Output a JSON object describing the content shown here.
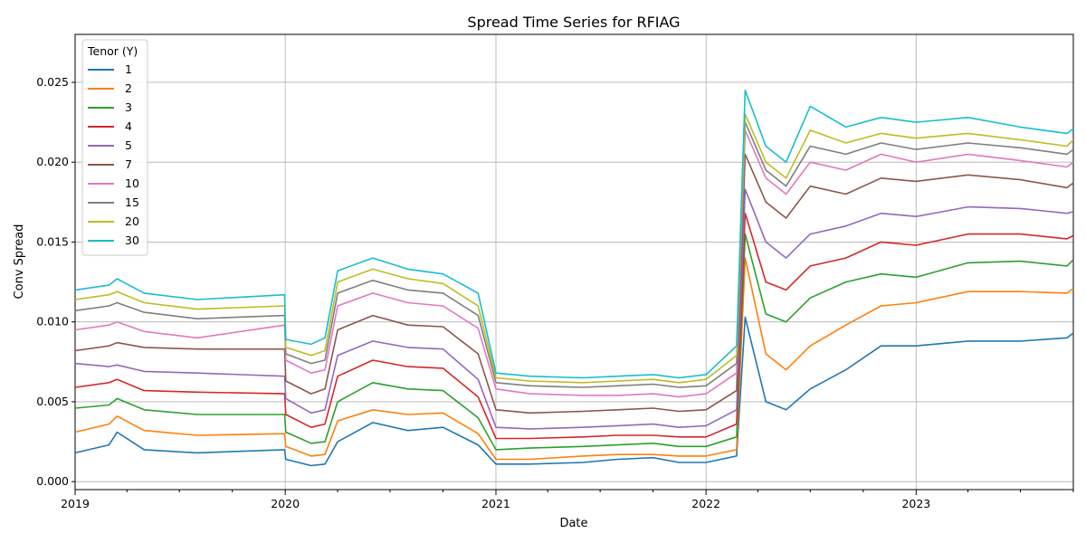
{
  "chart_data": {
    "type": "line",
    "title": "Spread Time Series for RFIAG",
    "xlabel": "Date",
    "ylabel": "Conv Spread",
    "xlim": [
      "2019-01-01",
      "2023-10-01"
    ],
    "ylim": [
      -0.0005,
      0.028
    ],
    "x_ticks": [
      "2019",
      "2020",
      "2021",
      "2022",
      "2023"
    ],
    "y_ticks": [
      "0.000",
      "0.005",
      "0.010",
      "0.015",
      "0.020",
      "0.025"
    ],
    "grid": true,
    "legend": {
      "title": "Tenor (Y)",
      "position": "upper-left"
    },
    "series": [
      {
        "name": "1",
        "color": "#1f77b4",
        "x": [
          "2019-01-01",
          "2019-03-01",
          "2019-03-15",
          "2019-05-01",
          "2019-08-01",
          "2019-12-31",
          "2020-01-02",
          "2020-02-15",
          "2020-03-10",
          "2020-04-01",
          "2020-06-01",
          "2020-08-01",
          "2020-10-01",
          "2020-12-01",
          "2021-01-01",
          "2021-03-01",
          "2021-06-01",
          "2021-08-01",
          "2021-10-01",
          "2021-11-15",
          "2022-01-01",
          "2022-02-23",
          "2022-03-10",
          "2022-04-15",
          "2022-05-20",
          "2022-07-01",
          "2022-09-01",
          "2022-11-01",
          "2023-01-01",
          "2023-04-01",
          "2023-07-01",
          "2023-09-20",
          "2023-10-01"
        ],
        "y": [
          0.0018,
          0.0023,
          0.0031,
          0.002,
          0.0018,
          0.002,
          0.0014,
          0.001,
          0.0011,
          0.0025,
          0.0037,
          0.0032,
          0.0034,
          0.0023,
          0.0011,
          0.0011,
          0.0012,
          0.0014,
          0.0015,
          0.0012,
          0.0012,
          0.0016,
          0.0103,
          0.005,
          0.0045,
          0.0058,
          0.007,
          0.0085,
          0.0085,
          0.0088,
          0.0088,
          0.009,
          0.0093
        ]
      },
      {
        "name": "2",
        "color": "#ff7f0e",
        "x": [
          "2019-01-01",
          "2019-03-01",
          "2019-03-15",
          "2019-05-01",
          "2019-08-01",
          "2019-12-31",
          "2020-01-02",
          "2020-02-15",
          "2020-03-10",
          "2020-04-01",
          "2020-06-01",
          "2020-08-01",
          "2020-10-01",
          "2020-12-01",
          "2021-01-01",
          "2021-03-01",
          "2021-06-01",
          "2021-08-01",
          "2021-10-01",
          "2021-11-15",
          "2022-01-01",
          "2022-02-23",
          "2022-03-10",
          "2022-04-15",
          "2022-05-20",
          "2022-07-01",
          "2022-09-01",
          "2022-11-01",
          "2023-01-01",
          "2023-04-01",
          "2023-07-01",
          "2023-09-20",
          "2023-10-01"
        ],
        "y": [
          0.0031,
          0.0036,
          0.0041,
          0.0032,
          0.0029,
          0.003,
          0.0022,
          0.0016,
          0.0017,
          0.0038,
          0.0045,
          0.0042,
          0.0043,
          0.003,
          0.0014,
          0.0014,
          0.0016,
          0.0017,
          0.0017,
          0.0016,
          0.0016,
          0.002,
          0.014,
          0.008,
          0.007,
          0.0085,
          0.0098,
          0.011,
          0.0112,
          0.0119,
          0.0119,
          0.0118,
          0.0121
        ]
      },
      {
        "name": "3",
        "color": "#2ca02c",
        "x": [
          "2019-01-01",
          "2019-03-01",
          "2019-03-15",
          "2019-05-01",
          "2019-08-01",
          "2019-12-31",
          "2020-01-02",
          "2020-02-15",
          "2020-03-10",
          "2020-04-01",
          "2020-06-01",
          "2020-08-01",
          "2020-10-01",
          "2020-12-01",
          "2021-01-01",
          "2021-03-01",
          "2021-06-01",
          "2021-08-01",
          "2021-10-01",
          "2021-11-15",
          "2022-01-01",
          "2022-02-23",
          "2022-03-10",
          "2022-04-15",
          "2022-05-20",
          "2022-07-01",
          "2022-09-01",
          "2022-11-01",
          "2023-01-01",
          "2023-04-01",
          "2023-07-01",
          "2023-09-20",
          "2023-10-01"
        ],
        "y": [
          0.0046,
          0.0048,
          0.0052,
          0.0045,
          0.0042,
          0.0042,
          0.0031,
          0.0024,
          0.0025,
          0.005,
          0.0062,
          0.0058,
          0.0057,
          0.004,
          0.002,
          0.0021,
          0.0022,
          0.0023,
          0.0024,
          0.0022,
          0.0022,
          0.0028,
          0.0155,
          0.0105,
          0.01,
          0.0115,
          0.0125,
          0.013,
          0.0128,
          0.0137,
          0.0138,
          0.0135,
          0.0139
        ]
      },
      {
        "name": "4",
        "color": "#d62728",
        "x": [
          "2019-01-01",
          "2019-03-01",
          "2019-03-15",
          "2019-05-01",
          "2019-08-01",
          "2019-12-31",
          "2020-01-02",
          "2020-02-15",
          "2020-03-10",
          "2020-04-01",
          "2020-06-01",
          "2020-08-01",
          "2020-10-01",
          "2020-12-01",
          "2021-01-01",
          "2021-03-01",
          "2021-06-01",
          "2021-08-01",
          "2021-10-01",
          "2021-11-15",
          "2022-01-01",
          "2022-02-23",
          "2022-03-10",
          "2022-04-15",
          "2022-05-20",
          "2022-07-01",
          "2022-09-01",
          "2022-11-01",
          "2023-01-01",
          "2023-04-01",
          "2023-07-01",
          "2023-09-20",
          "2023-10-01"
        ],
        "y": [
          0.0059,
          0.0062,
          0.0064,
          0.0057,
          0.0056,
          0.0055,
          0.0042,
          0.0034,
          0.0036,
          0.0066,
          0.0076,
          0.0072,
          0.0071,
          0.0053,
          0.0027,
          0.0027,
          0.0028,
          0.0029,
          0.0029,
          0.0028,
          0.0028,
          0.0036,
          0.0168,
          0.0125,
          0.012,
          0.0135,
          0.014,
          0.015,
          0.0148,
          0.0155,
          0.0155,
          0.0152,
          0.0154
        ]
      },
      {
        "name": "5",
        "color": "#9467bd",
        "x": [
          "2019-01-01",
          "2019-03-01",
          "2019-03-15",
          "2019-05-01",
          "2019-08-01",
          "2019-12-31",
          "2020-01-02",
          "2020-02-15",
          "2020-03-10",
          "2020-04-01",
          "2020-06-01",
          "2020-08-01",
          "2020-10-01",
          "2020-12-01",
          "2021-01-01",
          "2021-03-01",
          "2021-06-01",
          "2021-08-01",
          "2021-10-01",
          "2021-11-15",
          "2022-01-01",
          "2022-02-23",
          "2022-03-10",
          "2022-04-15",
          "2022-05-20",
          "2022-07-01",
          "2022-09-01",
          "2022-11-01",
          "2023-01-01",
          "2023-04-01",
          "2023-07-01",
          "2023-09-20",
          "2023-10-01"
        ],
        "y": [
          0.0074,
          0.0072,
          0.0073,
          0.0069,
          0.0068,
          0.0066,
          0.0052,
          0.0043,
          0.0045,
          0.0079,
          0.0088,
          0.0084,
          0.0083,
          0.0064,
          0.0034,
          0.0033,
          0.0034,
          0.0035,
          0.0036,
          0.0034,
          0.0035,
          0.0045,
          0.0183,
          0.015,
          0.014,
          0.0155,
          0.016,
          0.0168,
          0.0166,
          0.0172,
          0.0171,
          0.0168,
          0.0169
        ]
      },
      {
        "name": "7",
        "color": "#8c564b",
        "x": [
          "2019-01-01",
          "2019-03-01",
          "2019-03-15",
          "2019-05-01",
          "2019-08-01",
          "2019-12-31",
          "2020-01-02",
          "2020-02-15",
          "2020-03-10",
          "2020-04-01",
          "2020-06-01",
          "2020-08-01",
          "2020-10-01",
          "2020-12-01",
          "2021-01-01",
          "2021-03-01",
          "2021-06-01",
          "2021-08-01",
          "2021-10-01",
          "2021-11-15",
          "2022-01-01",
          "2022-02-23",
          "2022-03-10",
          "2022-04-15",
          "2022-05-20",
          "2022-07-01",
          "2022-09-01",
          "2022-11-01",
          "2023-01-01",
          "2023-04-01",
          "2023-07-01",
          "2023-09-20",
          "2023-10-01"
        ],
        "y": [
          0.0082,
          0.0085,
          0.0087,
          0.0084,
          0.0083,
          0.0083,
          0.0063,
          0.0055,
          0.0058,
          0.0095,
          0.0104,
          0.0098,
          0.0097,
          0.008,
          0.0045,
          0.0043,
          0.0044,
          0.0045,
          0.0046,
          0.0044,
          0.0045,
          0.0057,
          0.0205,
          0.0175,
          0.0165,
          0.0185,
          0.018,
          0.019,
          0.0188,
          0.0192,
          0.0189,
          0.0184,
          0.0187
        ]
      },
      {
        "name": "10",
        "color": "#e377c2",
        "x": [
          "2019-01-01",
          "2019-03-01",
          "2019-03-15",
          "2019-05-01",
          "2019-08-01",
          "2019-12-31",
          "2020-01-02",
          "2020-02-15",
          "2020-03-10",
          "2020-04-01",
          "2020-06-01",
          "2020-08-01",
          "2020-10-01",
          "2020-12-01",
          "2021-01-01",
          "2021-03-01",
          "2021-06-01",
          "2021-08-01",
          "2021-10-01",
          "2021-11-15",
          "2022-01-01",
          "2022-02-23",
          "2022-03-10",
          "2022-04-15",
          "2022-05-20",
          "2022-07-01",
          "2022-09-01",
          "2022-11-01",
          "2023-01-01",
          "2023-04-01",
          "2023-07-01",
          "2023-09-20",
          "2023-10-01"
        ],
        "y": [
          0.0095,
          0.0098,
          0.01,
          0.0094,
          0.009,
          0.0098,
          0.0076,
          0.0068,
          0.007,
          0.011,
          0.0118,
          0.0112,
          0.011,
          0.0096,
          0.0058,
          0.0055,
          0.0054,
          0.0054,
          0.0055,
          0.0053,
          0.0055,
          0.0068,
          0.022,
          0.019,
          0.018,
          0.02,
          0.0195,
          0.0205,
          0.02,
          0.0205,
          0.0201,
          0.0197,
          0.02
        ]
      },
      {
        "name": "15",
        "color": "#7f7f7f",
        "x": [
          "2019-01-01",
          "2019-03-01",
          "2019-03-15",
          "2019-05-01",
          "2019-08-01",
          "2019-12-31",
          "2020-01-02",
          "2020-02-15",
          "2020-03-10",
          "2020-04-01",
          "2020-06-01",
          "2020-08-01",
          "2020-10-01",
          "2020-12-01",
          "2021-01-01",
          "2021-03-01",
          "2021-06-01",
          "2021-08-01",
          "2021-10-01",
          "2021-11-15",
          "2022-01-01",
          "2022-02-23",
          "2022-03-10",
          "2022-04-15",
          "2022-05-20",
          "2022-07-01",
          "2022-09-01",
          "2022-11-01",
          "2023-01-01",
          "2023-04-01",
          "2023-07-01",
          "2023-09-20",
          "2023-10-01"
        ],
        "y": [
          0.0107,
          0.011,
          0.0112,
          0.0106,
          0.0102,
          0.0104,
          0.008,
          0.0074,
          0.0076,
          0.0118,
          0.0126,
          0.012,
          0.0118,
          0.0104,
          0.0062,
          0.006,
          0.0059,
          0.006,
          0.0061,
          0.0059,
          0.006,
          0.0074,
          0.0225,
          0.0195,
          0.0185,
          0.021,
          0.0205,
          0.0212,
          0.0208,
          0.0212,
          0.0209,
          0.0205,
          0.0208
        ]
      },
      {
        "name": "20",
        "color": "#bcbd22",
        "x": [
          "2019-01-01",
          "2019-03-01",
          "2019-03-15",
          "2019-05-01",
          "2019-08-01",
          "2019-12-31",
          "2020-01-02",
          "2020-02-15",
          "2020-03-10",
          "2020-04-01",
          "2020-06-01",
          "2020-08-01",
          "2020-10-01",
          "2020-12-01",
          "2021-01-01",
          "2021-03-01",
          "2021-06-01",
          "2021-08-01",
          "2021-10-01",
          "2021-11-15",
          "2022-01-01",
          "2022-02-23",
          "2022-03-10",
          "2022-04-15",
          "2022-05-20",
          "2022-07-01",
          "2022-09-01",
          "2022-11-01",
          "2023-01-01",
          "2023-04-01",
          "2023-07-01",
          "2023-09-20",
          "2023-10-01"
        ],
        "y": [
          0.0114,
          0.0117,
          0.0119,
          0.0112,
          0.0108,
          0.011,
          0.0084,
          0.0079,
          0.0082,
          0.0125,
          0.0133,
          0.0127,
          0.0124,
          0.011,
          0.0065,
          0.0063,
          0.0062,
          0.0063,
          0.0064,
          0.0062,
          0.0064,
          0.0079,
          0.023,
          0.02,
          0.019,
          0.022,
          0.0212,
          0.0218,
          0.0215,
          0.0218,
          0.0214,
          0.021,
          0.0214
        ]
      },
      {
        "name": "30",
        "color": "#17becf",
        "x": [
          "2019-01-01",
          "2019-03-01",
          "2019-03-15",
          "2019-05-01",
          "2019-08-01",
          "2019-12-31",
          "2020-01-02",
          "2020-02-15",
          "2020-03-10",
          "2020-04-01",
          "2020-06-01",
          "2020-08-01",
          "2020-10-01",
          "2020-12-01",
          "2021-01-01",
          "2021-03-01",
          "2021-06-01",
          "2021-08-01",
          "2021-10-01",
          "2021-11-15",
          "2022-01-01",
          "2022-02-23",
          "2022-03-10",
          "2022-04-15",
          "2022-05-20",
          "2022-07-01",
          "2022-09-01",
          "2022-11-01",
          "2023-01-01",
          "2023-04-01",
          "2023-07-01",
          "2023-09-20",
          "2023-10-01"
        ],
        "y": [
          0.012,
          0.0123,
          0.0127,
          0.0118,
          0.0114,
          0.0117,
          0.0089,
          0.0086,
          0.009,
          0.0132,
          0.014,
          0.0133,
          0.013,
          0.0118,
          0.0068,
          0.0066,
          0.0065,
          0.0066,
          0.0067,
          0.0065,
          0.0067,
          0.0085,
          0.0245,
          0.021,
          0.02,
          0.0235,
          0.0222,
          0.0228,
          0.0225,
          0.0228,
          0.0222,
          0.0218,
          0.0221
        ]
      }
    ]
  }
}
